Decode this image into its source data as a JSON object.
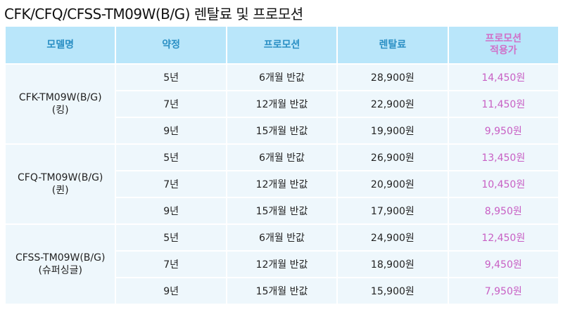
{
  "title": "CFK/CFQ/CFSS-TM09W(B/G) 렌탈료 및 프로모션",
  "colors": {
    "header_bg": "#b9e6fa",
    "header_text": "#2a8fc4",
    "promo_text": "#c85fc4",
    "body_bg": "#eef7fc"
  },
  "headers": [
    "모델명",
    "약정",
    "프로모션",
    "렌탈료",
    "프로모션",
    "적용가"
  ],
  "models": [
    {
      "name": "CFK-TM09W(B/G)",
      "sub": "(킹)",
      "rows": [
        {
          "term": "5년",
          "promo": "6개월 반값",
          "rent": "28,900원",
          "price": "14,450원"
        },
        {
          "term": "7년",
          "promo": "12개월 반값",
          "rent": "22,900원",
          "price": "11,450원"
        },
        {
          "term": "9년",
          "promo": "15개월 반값",
          "rent": "19,900원",
          "price": "9,950원"
        }
      ]
    },
    {
      "name": "CFQ-TM09W(B/G)",
      "sub": "(퀸)",
      "rows": [
        {
          "term": "5년",
          "promo": "6개월 반값",
          "rent": "26,900원",
          "price": "13,450원"
        },
        {
          "term": "7년",
          "promo": "12개월 반값",
          "rent": "20,900원",
          "price": "10,450원"
        },
        {
          "term": "9년",
          "promo": "15개월 반값",
          "rent": "17,900원",
          "price": "8,950원"
        }
      ]
    },
    {
      "name": "CFSS-TM09W(B/G)",
      "sub": "(슈퍼싱글)",
      "rows": [
        {
          "term": "5년",
          "promo": "6개월 반값",
          "rent": "24,900원",
          "price": "12,450원"
        },
        {
          "term": "7년",
          "promo": "12개월 반값",
          "rent": "18,900원",
          "price": "9,450원"
        },
        {
          "term": "9년",
          "promo": "15개월 반값",
          "rent": "15,900원",
          "price": "7,950원"
        }
      ]
    }
  ]
}
